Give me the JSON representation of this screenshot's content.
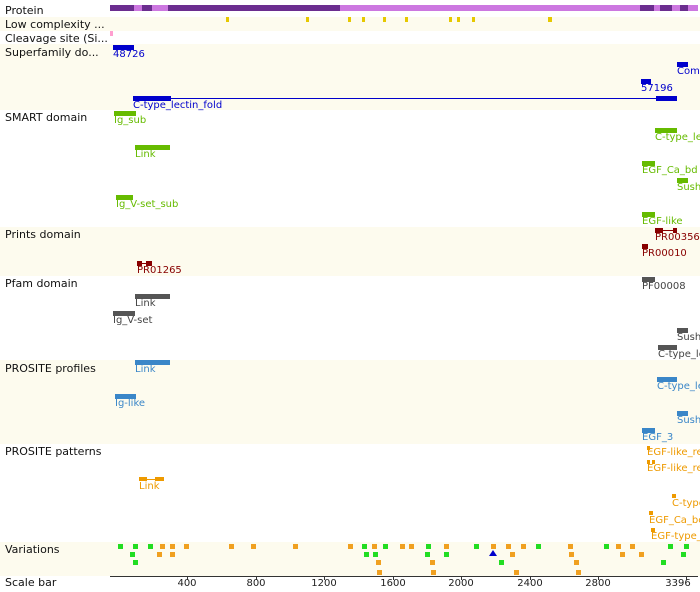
{
  "tracks": {
    "protein": "Protein",
    "low_complexity": "Low complexity ...",
    "cleavage": "Cleavage site (Si...",
    "superfamily": "Superfamily do...",
    "smart": "SMART domain",
    "prints": "Prints domain",
    "pfam": "Pfam domain",
    "prosite_profiles": "PROSITE profiles",
    "prosite_patterns": "PROSITE patterns",
    "variations": "Variations",
    "scale_bar": "Scale bar"
  },
  "superfamily": {
    "f1": "48726",
    "f2": "Comp",
    "f3": "57196",
    "f4": "C-type_lectin_fold"
  },
  "smart": {
    "f1": "Ig_sub",
    "f2": "C-type_le",
    "f3": "Link",
    "f4": "EGF_Ca_bd",
    "f5": "Sush",
    "f6": "Ig_V-set_sub",
    "f7": "EGF-like"
  },
  "prints": {
    "f1": "PR00356",
    "f2": "PR00010",
    "f3": "PR01265"
  },
  "pfam": {
    "f1": "Link",
    "f2": "PF00008",
    "f3": "Ig_V-set",
    "f4": "Sush",
    "f5": "C-type_le"
  },
  "prosite_profiles": {
    "f1": "Link",
    "f2": "C-type_le",
    "f3": "Ig-like",
    "f4": "Sush",
    "f5": "EGF_3"
  },
  "prosite_patterns": {
    "f1": "EGF-like_re",
    "f2": "EGF-like_re",
    "f3": "Link",
    "f4": "C-type",
    "f5": "EGF_Ca_bc",
    "f6": "EGF-type_"
  },
  "scale": {
    "ticks": [
      "400",
      "800",
      "1200",
      "1600",
      "2000",
      "2400",
      "2800",
      "3396"
    ]
  },
  "colors": {
    "protein_dark": "#6b2d8f",
    "protein_light": "#cc77e0",
    "low_complexity": "#e6c800",
    "cleavage": "#ff9fd0",
    "superfamily": "#0000cc",
    "smart": "#66bb00",
    "prints": "#880000",
    "pfam": "#555555",
    "prosite_profiles": "#3a86c8",
    "prosite_patterns": "#ee9a00",
    "variation_green": "#22dd22",
    "variation_orange": "#f0a020"
  }
}
